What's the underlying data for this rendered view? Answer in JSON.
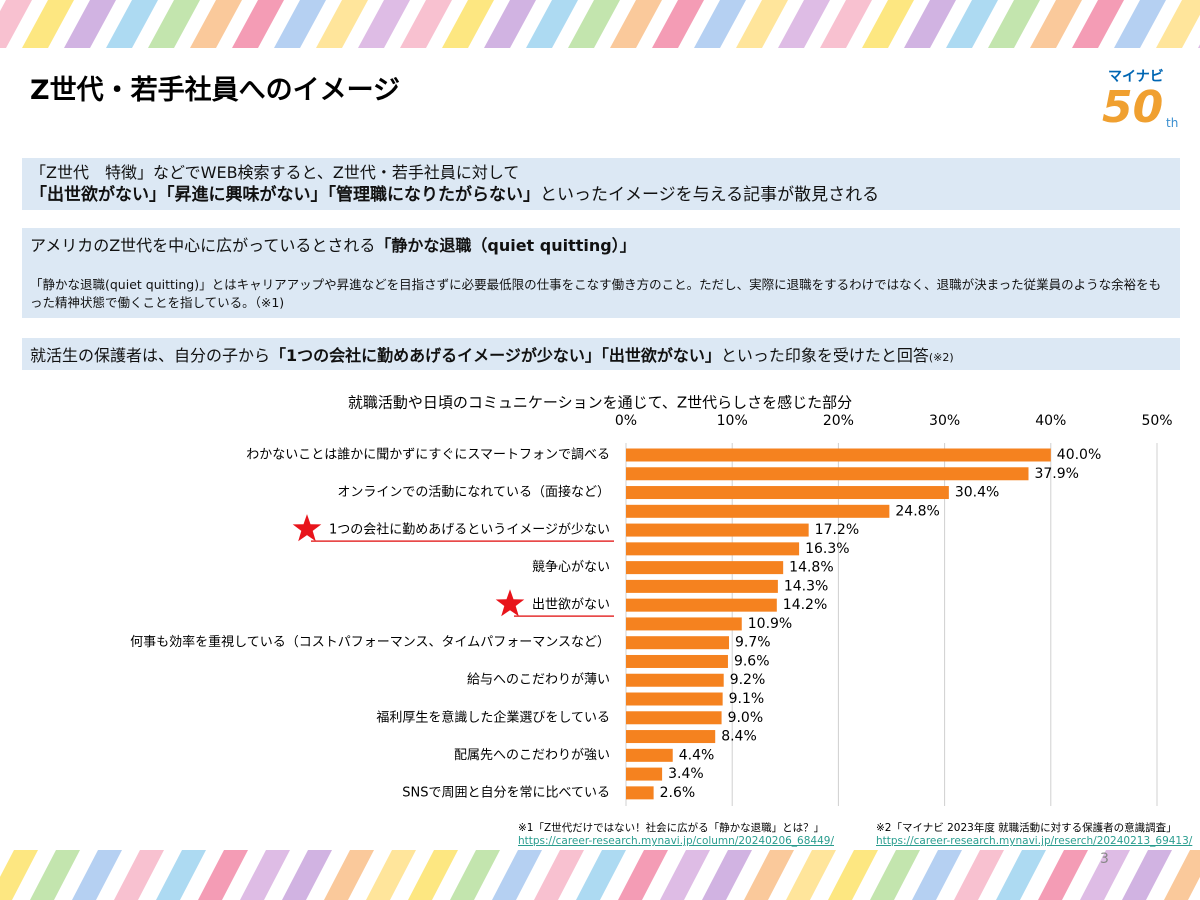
{
  "header": {
    "title": "Z世代・若手社員へのイメージ",
    "logo": "マイナビ",
    "logo_number": "50",
    "logo_suffix": "th"
  },
  "box1": {
    "line1": "「Z世代　特徴」などでWEB検索すると、Z世代・若手社員に対して",
    "line2_bold": "「出世欲がない」「昇進に興味がない」「管理職になりたがらない」",
    "line2_rest": "といったイメージを与える記事が散見される"
  },
  "box2": {
    "heading": "アメリカのZ世代を中心に広がっているとされる",
    "heading_bold": "「静かな退職（quiet quitting）」",
    "body": "「静かな退職(quiet quitting)」とはキャリアアップや昇進などを目指さずに必要最低限の仕事をこなす働き方のこと。ただし、実際に退職をするわけではなく、退職が決まった従業員のような余裕をもった精神状態で働くことを指している。（※1)"
  },
  "box3": {
    "text": "就活生の保護者は、自分の子から",
    "bold": "「1つの会社に勤めあげるイメージが少ない」「出世欲がない」",
    "rest": "といった印象を受けたと回答",
    "note": "(※2)"
  },
  "chart_data": {
    "type": "bar",
    "orientation": "horizontal",
    "title": "就職活動や日頃のコミュニケーションを通じて、Z世代らしさを感じた部分",
    "categories": [
      "わかないことは誰かに聞かずにすぐにスマートフォンで調べる",
      null,
      "オンラインでの活動になれている（面接など）",
      null,
      "1つの会社に勤めあげるというイメージが少ない",
      null,
      "競争心がない",
      null,
      "出世欲がない",
      null,
      "何事も効率を重視している（コストパフォーマンス、タイムパフォーマンスなど）",
      null,
      "給与へのこだわりが薄い",
      null,
      "福利厚生を意識した企業選びをしている",
      null,
      "配属先へのこだわりが強い",
      null,
      "SNSで周囲と自分を常に比べている"
    ],
    "values": [
      40.0,
      37.9,
      30.4,
      24.8,
      17.2,
      16.3,
      14.8,
      14.3,
      14.2,
      10.9,
      9.7,
      9.6,
      9.2,
      9.1,
      9.0,
      8.4,
      4.4,
      3.4,
      2.6
    ],
    "value_labels": [
      "40.0%",
      "37.9%",
      "30.4%",
      "24.8%",
      "17.2%",
      "16.3%",
      "14.8%",
      "14.3%",
      "14.2%",
      "10.9%",
      "9.7%",
      "9.6%",
      "9.2%",
      "9.1%",
      "9.0%",
      "8.4%",
      "4.4%",
      "3.4%",
      "2.6%"
    ],
    "color": "#f5821f",
    "xlim": [
      0,
      50
    ],
    "xticks": [
      {
        "value": 0,
        "label": "0%"
      },
      {
        "value": 10,
        "label": "10%"
      },
      {
        "value": 20,
        "label": "20%"
      },
      {
        "value": 30,
        "label": "30%"
      },
      {
        "value": 40,
        "label": "40%"
      },
      {
        "value": 50,
        "label": "50%"
      }
    ],
    "grid": true,
    "highlight": [
      4,
      8
    ]
  },
  "footnotes": [
    {
      "text": "※1「Z世代だけではない！社会に広がる「静かな退職」とは？」",
      "url": "https://career-research.mynavi.jp/column/20240206_68449/"
    },
    {
      "text": "※2「マイナビ 2023年度 就職活動に対する保護者の意識調査」",
      "url": "https://career-research.mynavi.jp/reserch/20240213_69413/"
    }
  ],
  "page_number": 3
}
